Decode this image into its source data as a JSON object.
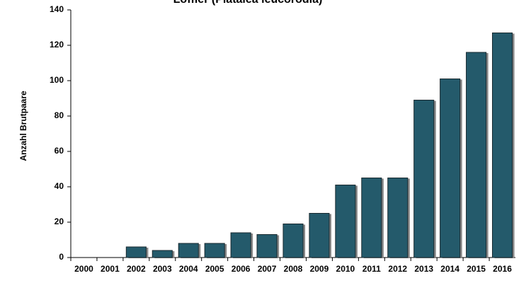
{
  "chart_data": {
    "type": "bar",
    "title": "Löffler (Platalea leucorodia)",
    "y_label": "Anzahl Brutpaare",
    "categories": [
      "2000",
      "2001",
      "2002",
      "2003",
      "2004",
      "2005",
      "2006",
      "2007",
      "2008",
      "2009",
      "2010",
      "2011",
      "2012",
      "2013",
      "2014",
      "2015",
      "2016"
    ],
    "values": [
      0,
      0,
      6,
      4,
      8,
      8,
      14,
      13,
      19,
      25,
      41,
      45,
      45,
      89,
      101,
      116,
      127
    ],
    "color": "#245a6b",
    "ylim": [
      0,
      140
    ],
    "yticks": [
      0,
      20,
      40,
      60,
      80,
      100,
      120,
      140
    ],
    "grid": false
  }
}
